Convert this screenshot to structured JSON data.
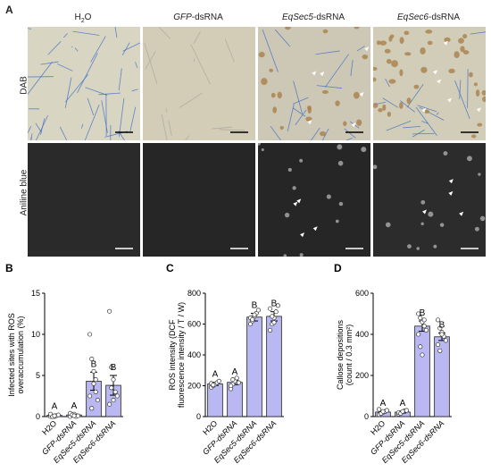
{
  "panelA": {
    "letter": "A",
    "columns": [
      {
        "prefix": "H",
        "sub": "2",
        "suffix": "O",
        "italic": ""
      },
      {
        "prefix": "",
        "sub": "",
        "suffix": "-dsRNA",
        "italic": "GFP"
      },
      {
        "prefix": "",
        "sub": "",
        "suffix": "-dsRNA",
        "italic": "EqSec5"
      },
      {
        "prefix": "",
        "sub": "",
        "suffix": "-dsRNA",
        "italic": "EqSec6"
      }
    ],
    "rows": [
      "DAB",
      "Aniline blue"
    ]
  },
  "chart_data": [
    {
      "letter": "B",
      "type": "bar",
      "categories": [
        "H2O",
        "GFP-dsRNA",
        "EqSec5-dsRNA",
        "EqSec6-dsRNA"
      ],
      "values": [
        0.15,
        0.2,
        4.3,
        3.8
      ],
      "errors": [
        0.1,
        0.1,
        1.1,
        1.2
      ],
      "letters": [
        "A",
        "A",
        "B",
        "B"
      ],
      "points": [
        [
          0,
          0,
          0,
          0.1,
          0.2,
          0.3,
          0,
          0.1
        ],
        [
          0,
          0.2,
          0.3,
          0,
          0.1,
          0.4,
          0.2,
          0.1
        ],
        [
          10,
          7,
          5.5,
          3,
          2,
          2.5,
          1,
          4,
          4.5
        ],
        [
          12.8,
          6,
          4.5,
          3,
          2.5,
          1.5,
          3.5,
          2
        ]
      ],
      "ylabel_lines": [
        "Infected sites with ROS",
        "overaccumulation (%)"
      ],
      "ylim": [
        0,
        15
      ],
      "yticks": [
        0,
        5,
        10,
        15
      ]
    },
    {
      "letter": "C",
      "type": "bar",
      "categories": [
        "H2O",
        "GFP-dsRNA",
        "EqSec5-dsRNA",
        "EqSec6-dsRNA"
      ],
      "values": [
        212,
        222,
        645,
        650
      ],
      "errors": [
        10,
        15,
        25,
        30
      ],
      "letters": [
        "A",
        "A",
        "B",
        "B"
      ],
      "points": [
        [
          190,
          200,
          210,
          220,
          230,
          215,
          205
        ],
        [
          180,
          210,
          230,
          250,
          220,
          200,
          240
        ],
        [
          600,
          620,
          650,
          670,
          690,
          640,
          630,
          660
        ],
        [
          560,
          600,
          640,
          680,
          720,
          700,
          650,
          610
        ]
      ],
      "ylabel_lines": [
        "ROS intensity (DCF",
        "fluorescence intensity / T / W)"
      ],
      "ylim": [
        0,
        800
      ],
      "yticks": [
        0,
        200,
        400,
        600,
        800
      ]
    },
    {
      "letter": "D",
      "type": "bar",
      "categories": [
        "H2O",
        "GFP-dsRNA",
        "EqSec5-dsRNA",
        "EqSec6-dsRNA"
      ],
      "values": [
        22,
        22,
        440,
        388
      ],
      "errors": [
        5,
        5,
        25,
        18
      ],
      "letters": [
        "A",
        "A",
        "B",
        "B"
      ],
      "points": [
        [
          10,
          15,
          20,
          25,
          30,
          35,
          15,
          25
        ],
        [
          12,
          18,
          22,
          28,
          30,
          20,
          15,
          25
        ],
        [
          500,
          480,
          460,
          440,
          420,
          400,
          340,
          300,
          470
        ],
        [
          470,
          430,
          410,
          390,
          370,
          350,
          320,
          400
        ]
      ],
      "ylabel_lines": [
        "Callose depositions",
        "(count / 0.3 mm²)"
      ],
      "ylim": [
        0,
        600
      ],
      "yticks": [
        0,
        200,
        400,
        600
      ]
    }
  ]
}
